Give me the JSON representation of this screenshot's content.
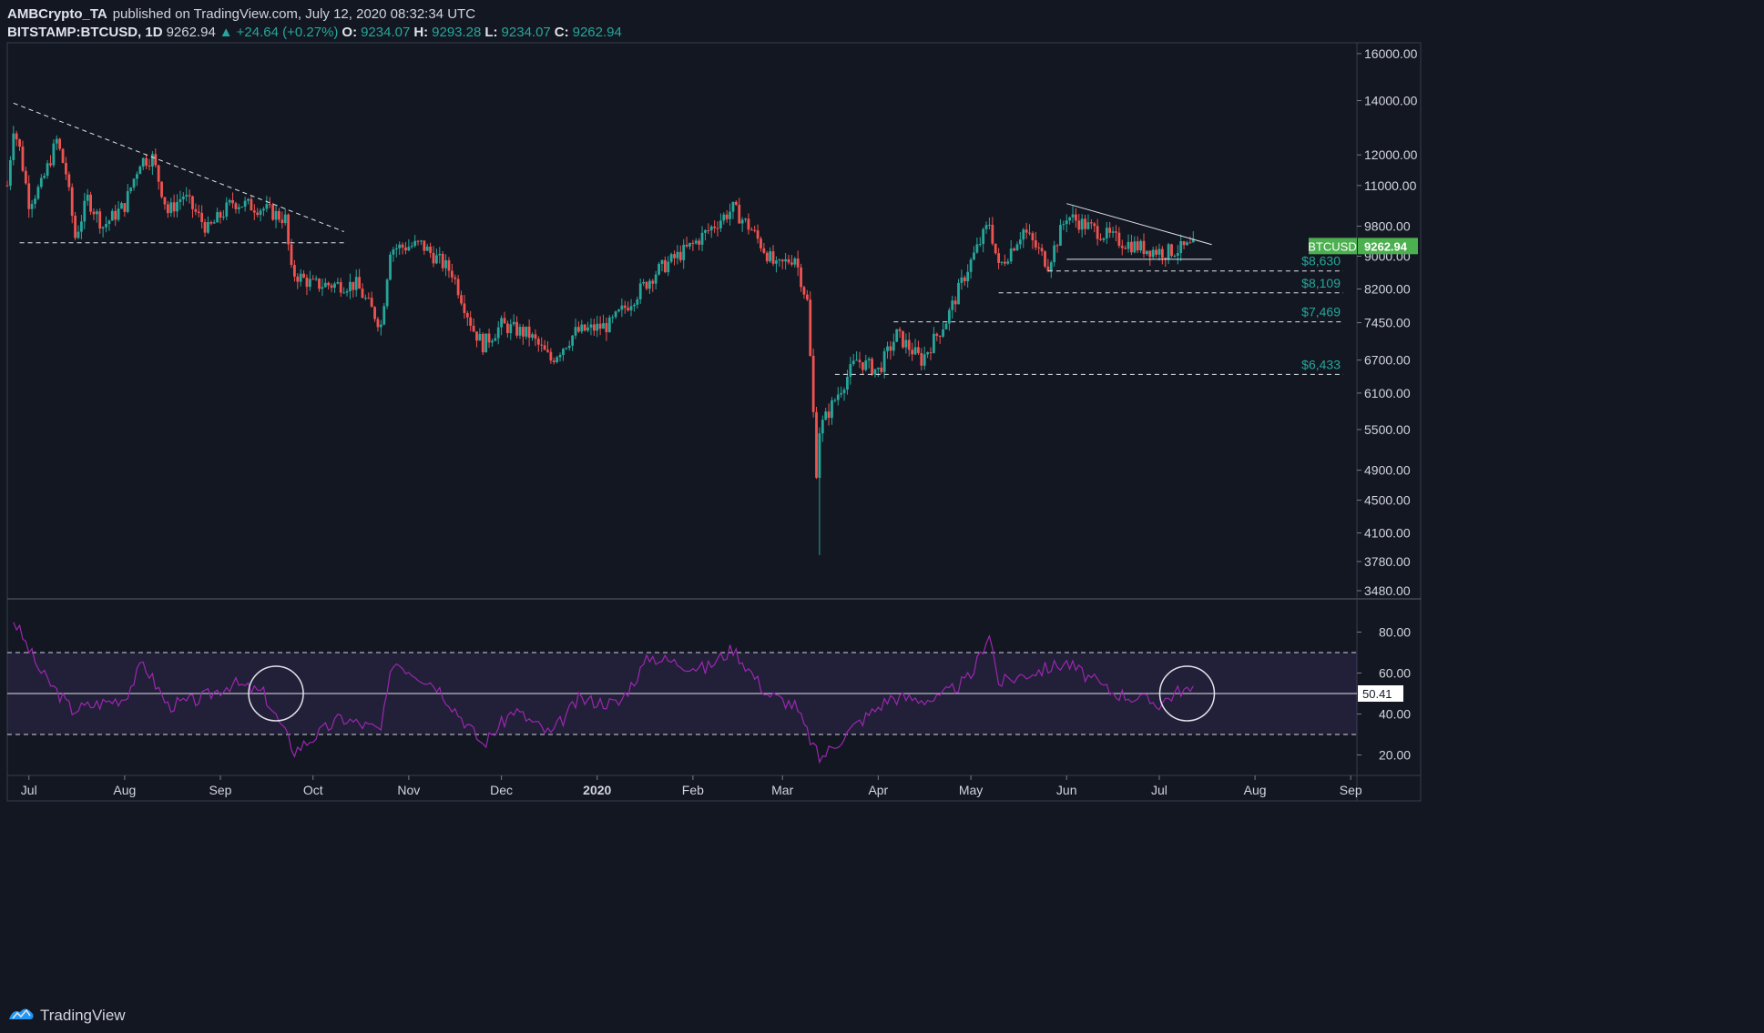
{
  "header": {
    "author": "AMBCrypto_TA",
    "published": "published on TradingView.com, July 12, 2020 08:32:34 UTC",
    "symbol": "BITSTAMP:BTCUSD, 1D",
    "last": "9262.94",
    "change": "+24.64 (+0.27%)",
    "o_label": "O:",
    "o": "9234.07",
    "h_label": "H:",
    "h": "9293.28",
    "l_label": "L:",
    "l": "9234.07",
    "c_label": "C:",
    "c": "9262.94"
  },
  "footer": {
    "brand": "TradingView"
  },
  "colors": {
    "up": "#26a69a",
    "down": "#ef5350",
    "bg": "#131722",
    "rsi": "#9c27b0",
    "price_tag": "#4caf50"
  },
  "chart_data": [
    {
      "type": "candlestick",
      "name": "BTCUSD",
      "scale": "log",
      "y_ticks": [
        "16000.00",
        "14000.00",
        "12000.00",
        "11000.00",
        "9800.00",
        "9000.00",
        "8200.00",
        "7450.00",
        "6700.00",
        "6100.00",
        "5500.00",
        "4900.00",
        "4500.00",
        "4100.00",
        "3780.00",
        "3480.00"
      ],
      "x_ticks": [
        "Jul",
        "Aug",
        "Sep",
        "Oct",
        "Nov",
        "Dec",
        "2020",
        "Feb",
        "Mar",
        "Apr",
        "May",
        "Jun",
        "Jul",
        "Aug",
        "Sep"
      ],
      "x_ticks_date": [
        "2019-07-01",
        "2019-08-01",
        "2019-09-01",
        "2019-10-01",
        "2019-11-01",
        "2019-12-01",
        "2020-01-01",
        "2020-02-01",
        "2020-03-01",
        "2020-04-01",
        "2020-05-01",
        "2020-06-01",
        "2020-07-01",
        "2020-08-01",
        "2020-09-01"
      ],
      "x_range": [
        "2019-06-24",
        "2020-09-03"
      ],
      "y_range": [
        3400,
        16500
      ],
      "price_tag": {
        "label": "BTCUSD",
        "value": "9262.94"
      },
      "approx_closes": [
        [
          "2019-06-24",
          11000
        ],
        [
          "2019-06-26",
          13000
        ],
        [
          "2019-06-28",
          12200
        ],
        [
          "2019-07-01",
          10500
        ],
        [
          "2019-07-05",
          11000
        ],
        [
          "2019-07-10",
          12500
        ],
        [
          "2019-07-13",
          11400
        ],
        [
          "2019-07-16",
          9500
        ],
        [
          "2019-07-20",
          10600
        ],
        [
          "2019-07-25",
          9800
        ],
        [
          "2019-08-01",
          10400
        ],
        [
          "2019-08-06",
          11800
        ],
        [
          "2019-08-10",
          11900
        ],
        [
          "2019-08-15",
          10200
        ],
        [
          "2019-08-20",
          10700
        ],
        [
          "2019-08-28",
          9700
        ],
        [
          "2019-09-05",
          10500
        ],
        [
          "2019-09-15",
          10300
        ],
        [
          "2019-09-22",
          10000
        ],
        [
          "2019-09-24",
          8600
        ],
        [
          "2019-10-01",
          8300
        ],
        [
          "2019-10-15",
          8300
        ],
        [
          "2019-10-23",
          7400
        ],
        [
          "2019-10-26",
          9200
        ],
        [
          "2019-11-05",
          9300
        ],
        [
          "2019-11-15",
          8600
        ],
        [
          "2019-11-22",
          7300
        ],
        [
          "2019-11-25",
          7000
        ],
        [
          "2019-12-01",
          7400
        ],
        [
          "2019-12-10",
          7200
        ],
        [
          "2019-12-17",
          6700
        ],
        [
          "2019-12-25",
          7250
        ],
        [
          "2020-01-05",
          7400
        ],
        [
          "2020-01-14",
          8100
        ],
        [
          "2020-01-20",
          8600
        ],
        [
          "2020-02-01",
          9300
        ],
        [
          "2020-02-10",
          10000
        ],
        [
          "2020-02-14",
          10300
        ],
        [
          "2020-02-20",
          9700
        ],
        [
          "2020-02-28",
          8700
        ],
        [
          "2020-03-05",
          9000
        ],
        [
          "2020-03-09",
          7900
        ],
        [
          "2020-03-12",
          4900
        ],
        [
          "2020-03-13",
          5500
        ],
        [
          "2020-03-20",
          6200
        ],
        [
          "2020-03-25",
          6700
        ],
        [
          "2020-04-01",
          6500
        ],
        [
          "2020-04-07",
          7200
        ],
        [
          "2020-04-15",
          6700
        ],
        [
          "2020-04-23",
          7500
        ],
        [
          "2020-04-30",
          8700
        ],
        [
          "2020-05-07",
          9900
        ],
        [
          "2020-05-10",
          8700
        ],
        [
          "2020-05-18",
          9700
        ],
        [
          "2020-05-26",
          8800
        ],
        [
          "2020-06-01",
          10100
        ],
        [
          "2020-06-10",
          9700
        ],
        [
          "2020-06-18",
          9400
        ],
        [
          "2020-06-26",
          9200
        ],
        [
          "2020-07-03",
          9100
        ],
        [
          "2020-07-12",
          9262.94
        ]
      ],
      "levels": [
        {
          "label": "$8,630",
          "value": 8630
        },
        {
          "label": "$8,109",
          "value": 8109
        },
        {
          "label": "$7,469",
          "value": 7469
        },
        {
          "label": "$6,433",
          "value": 6433
        }
      ]
    },
    {
      "type": "line",
      "name": "RSI",
      "y_ticks": [
        "80.00",
        "60.00",
        "40.00",
        "20.00"
      ],
      "bands": [
        30,
        50,
        70
      ],
      "current": "50.41",
      "approx_values": [
        [
          "2019-06-26",
          86
        ],
        [
          "2019-07-05",
          60
        ],
        [
          "2019-07-15",
          42
        ],
        [
          "2019-08-01",
          48
        ],
        [
          "2019-08-07",
          65
        ],
        [
          "2019-08-15",
          44
        ],
        [
          "2019-08-25",
          47
        ],
        [
          "2019-09-05",
          55
        ],
        [
          "2019-09-15",
          50
        ],
        [
          "2019-09-25",
          22
        ],
        [
          "2019-10-10",
          38
        ],
        [
          "2019-10-23",
          32
        ],
        [
          "2019-10-27",
          66
        ],
        [
          "2019-11-10",
          54
        ],
        [
          "2019-11-25",
          25
        ],
        [
          "2019-12-05",
          42
        ],
        [
          "2019-12-17",
          30
        ],
        [
          "2019-12-26",
          47
        ],
        [
          "2020-01-08",
          45
        ],
        [
          "2020-01-18",
          68
        ],
        [
          "2020-02-05",
          62
        ],
        [
          "2020-02-14",
          72
        ],
        [
          "2020-02-25",
          50
        ],
        [
          "2020-03-05",
          44
        ],
        [
          "2020-03-13",
          18
        ],
        [
          "2020-03-25",
          35
        ],
        [
          "2020-04-05",
          48
        ],
        [
          "2020-04-20",
          47
        ],
        [
          "2020-05-01",
          58
        ],
        [
          "2020-05-07",
          80
        ],
        [
          "2020-05-10",
          55
        ],
        [
          "2020-05-20",
          60
        ],
        [
          "2020-06-01",
          65
        ],
        [
          "2020-06-15",
          51
        ],
        [
          "2020-07-01",
          45
        ],
        [
          "2020-07-08",
          52
        ],
        [
          "2020-07-12",
          50.41
        ]
      ]
    }
  ]
}
